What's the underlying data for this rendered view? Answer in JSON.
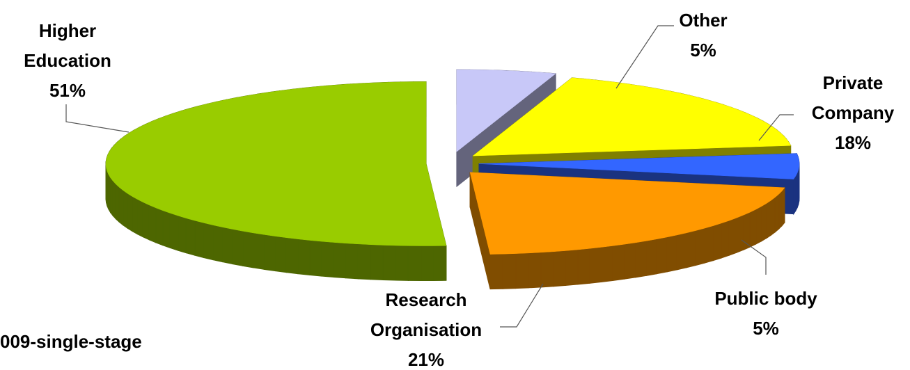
{
  "chart_data": {
    "type": "pie",
    "categories": [
      "Other",
      "Private Company",
      "Public body",
      "Research Organisation",
      "Higher Education"
    ],
    "values": [
      5,
      18,
      5,
      21,
      51
    ],
    "value_labels": [
      "5%",
      "18%",
      "5%",
      "21%",
      "51%"
    ],
    "colors": [
      "#c8c8f8",
      "#ffff00",
      "#3366ff",
      "#ff9900",
      "#99cc00"
    ],
    "annotations": [
      "009-single-stage"
    ]
  }
}
